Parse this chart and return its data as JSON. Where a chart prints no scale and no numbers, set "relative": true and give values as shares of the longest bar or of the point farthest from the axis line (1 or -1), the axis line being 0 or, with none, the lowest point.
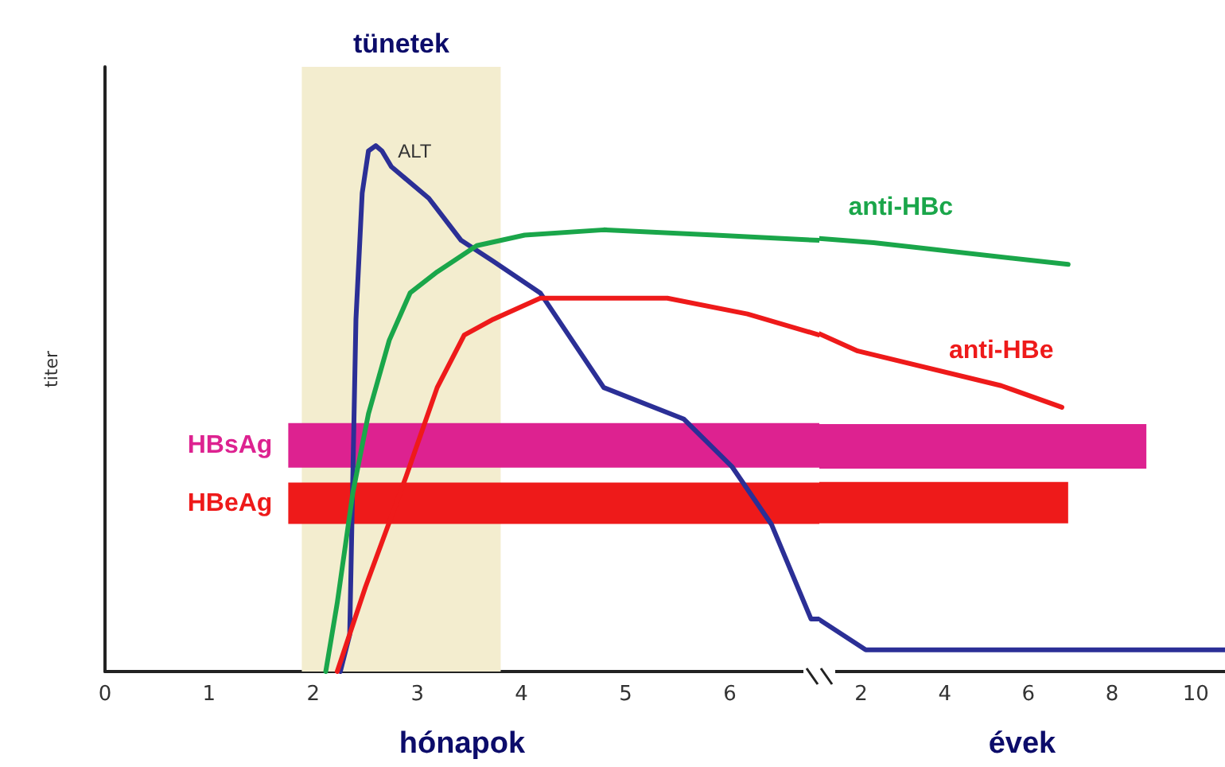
{
  "chart_data": [
    {
      "type": "line",
      "relative": true,
      "xlabel": "hónapok",
      "ylabel": "titer",
      "xlim": [
        0,
        6.86
      ],
      "xticks": [
        0,
        1,
        2,
        3,
        4,
        5,
        6
      ],
      "bands": [
        {
          "axis": "x",
          "from": 1.89,
          "to": 3.8,
          "label": "tünetek",
          "color": "#f3edcf"
        }
      ],
      "grid": false,
      "line_style": "solid",
      "series": [
        {
          "name": "ALT",
          "color": "#2b2f96",
          "x": [
            2.26,
            2.35,
            2.38,
            2.41,
            2.47,
            2.53,
            2.6,
            2.66,
            2.75,
            3.11,
            3.42,
            3.73,
            4.18,
            4.79,
            5.56,
            6.02,
            6.4,
            6.78,
            6.86
          ],
          "values": [
            0,
            0.07,
            0.37,
            0.67,
            0.91,
            0.99,
            1,
            0.99,
            0.96,
            0.9,
            0.82,
            0.78,
            0.72,
            0.54,
            0.48,
            0.39,
            0.28,
            0.1,
            0.1
          ]
        },
        {
          "color": "#1aa64a",
          "x": [
            2.12,
            2.23,
            2.38,
            2.53,
            2.73,
            2.93,
            3.19,
            3.57,
            4.03,
            4.79,
            5.86,
            6.86
          ],
          "values": [
            0,
            0.13,
            0.34,
            0.49,
            0.63,
            0.72,
            0.76,
            0.81,
            0.83,
            0.84,
            0.83,
            0.82
          ]
        },
        {
          "color": "#ee1a1a",
          "x": [
            2.23,
            2.5,
            2.89,
            3.19,
            3.45,
            3.73,
            4.18,
            4.34,
            5.4,
            6.17,
            6.86
          ],
          "values": [
            0,
            0.16,
            0.37,
            0.54,
            0.64,
            0.67,
            0.71,
            0.71,
            0.71,
            0.68,
            0.64
          ]
        },
        {
          "name": "HBsAg",
          "color": "#dd2290",
          "x": [
            1.76,
            6.86
          ],
          "values": [
            0.43,
            0.43
          ]
        },
        {
          "name": "HBeAg",
          "color": "#ee1a1a",
          "x": [
            1.76,
            6.86
          ],
          "values": [
            0.32,
            0.32
          ]
        }
      ]
    },
    {
      "type": "line",
      "relative": true,
      "xlabel": "évek",
      "xlim": [
        1,
        10.7
      ],
      "xticks": [
        2,
        4,
        6,
        8,
        10
      ],
      "grid": false,
      "line_style": "solid",
      "series": [
        {
          "color": "#2b2f96",
          "x": [
            1,
            2.11,
            10.7
          ],
          "values": [
            0.12,
            0.05,
            0.05
          ]
        },
        {
          "name": "anti-HBc",
          "color": "#1aa64a",
          "x": [
            1,
            2.3,
            6.95
          ],
          "values": [
            1,
            0.99,
            0.94
          ]
        },
        {
          "name": "anti-HBe",
          "color": "#ee1a1a",
          "x": [
            1,
            1.92,
            5.35,
            6.8
          ],
          "values": [
            0.78,
            0.74,
            0.66,
            0.61
          ]
        },
        {
          "color": "#dd2290",
          "x": [
            1,
            8.82
          ],
          "values": [
            0.52,
            0.52
          ]
        },
        {
          "color": "#ee1a1a",
          "x": [
            1,
            6.95
          ],
          "values": [
            0.39,
            0.39
          ]
        }
      ]
    }
  ]
}
